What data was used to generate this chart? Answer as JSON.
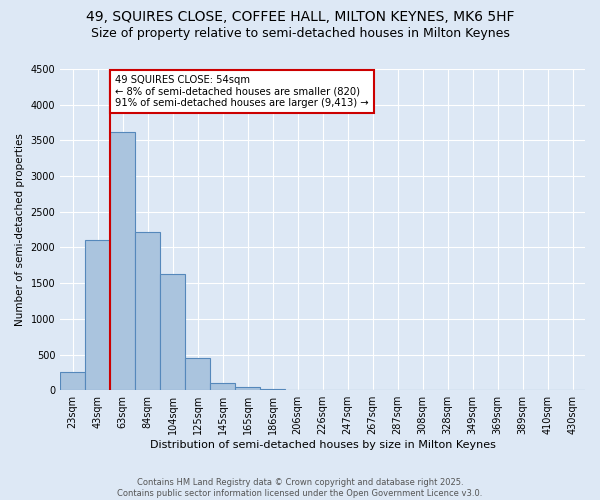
{
  "title": "49, SQUIRES CLOSE, COFFEE HALL, MILTON KEYNES, MK6 5HF",
  "subtitle": "Size of property relative to semi-detached houses in Milton Keynes",
  "xlabel": "Distribution of semi-detached houses by size in Milton Keynes",
  "ylabel": "Number of semi-detached properties",
  "categories": [
    "23sqm",
    "43sqm",
    "63sqm",
    "84sqm",
    "104sqm",
    "125sqm",
    "145sqm",
    "165sqm",
    "186sqm",
    "206sqm",
    "226sqm",
    "247sqm",
    "267sqm",
    "287sqm",
    "308sqm",
    "328sqm",
    "349sqm",
    "369sqm",
    "389sqm",
    "410sqm",
    "430sqm"
  ],
  "values": [
    250,
    2100,
    3620,
    2220,
    1630,
    450,
    100,
    40,
    20,
    0,
    0,
    0,
    0,
    0,
    0,
    0,
    0,
    0,
    0,
    0,
    0
  ],
  "bar_color": "#aac4de",
  "bar_edge_color": "#5588bb",
  "bg_color": "#dde8f5",
  "grid_color": "#ffffff",
  "vline_color": "#cc0000",
  "annotation_text": "49 SQUIRES CLOSE: 54sqm\n← 8% of semi-detached houses are smaller (820)\n91% of semi-detached houses are larger (9,413) →",
  "annotation_box_color": "#ffffff",
  "annotation_box_edge": "#cc0000",
  "ylim": [
    0,
    4500
  ],
  "footer": "Contains HM Land Registry data © Crown copyright and database right 2025.\nContains public sector information licensed under the Open Government Licence v3.0.",
  "title_fontsize": 10,
  "subtitle_fontsize": 9
}
